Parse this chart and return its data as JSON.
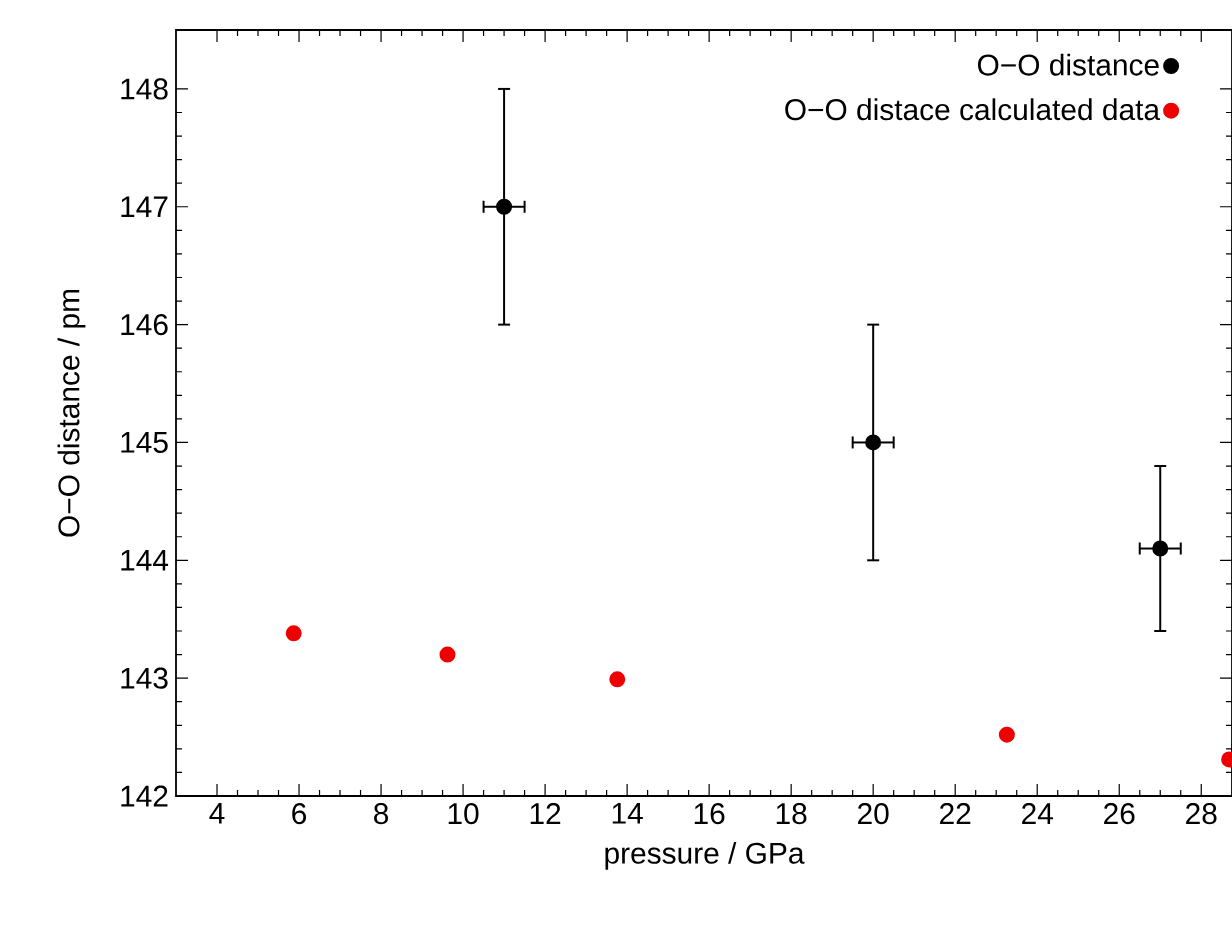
{
  "chart_data": {
    "type": "scatter",
    "xlabel": "pressure / GPa",
    "ylabel": "O−O distance / pm",
    "xlim": [
      3,
      28.75
    ],
    "ylim": [
      142,
      148.5
    ],
    "xticks": [
      4,
      6,
      8,
      10,
      12,
      14,
      16,
      18,
      20,
      22,
      24,
      26,
      28
    ],
    "yticks": [
      142,
      143,
      144,
      145,
      146,
      147,
      148
    ],
    "legend": "top right",
    "marker": "circle",
    "grid": false,
    "series": [
      {
        "name": "O−O distance",
        "color": "#000000",
        "x": [
          11,
          20,
          27
        ],
        "values": [
          147,
          145,
          144.1
        ],
        "errors": [
          1,
          1,
          0.7
        ],
        "xerrors": [
          0.5,
          0.5,
          0.5
        ]
      },
      {
        "name": "O−O distace calculated data",
        "color": "#ee0000",
        "x": [
          5.87,
          9.62,
          13.76,
          23.26,
          28.68
        ],
        "values": [
          143.38,
          143.2,
          142.99,
          142.52,
          142.31
        ]
      }
    ]
  }
}
